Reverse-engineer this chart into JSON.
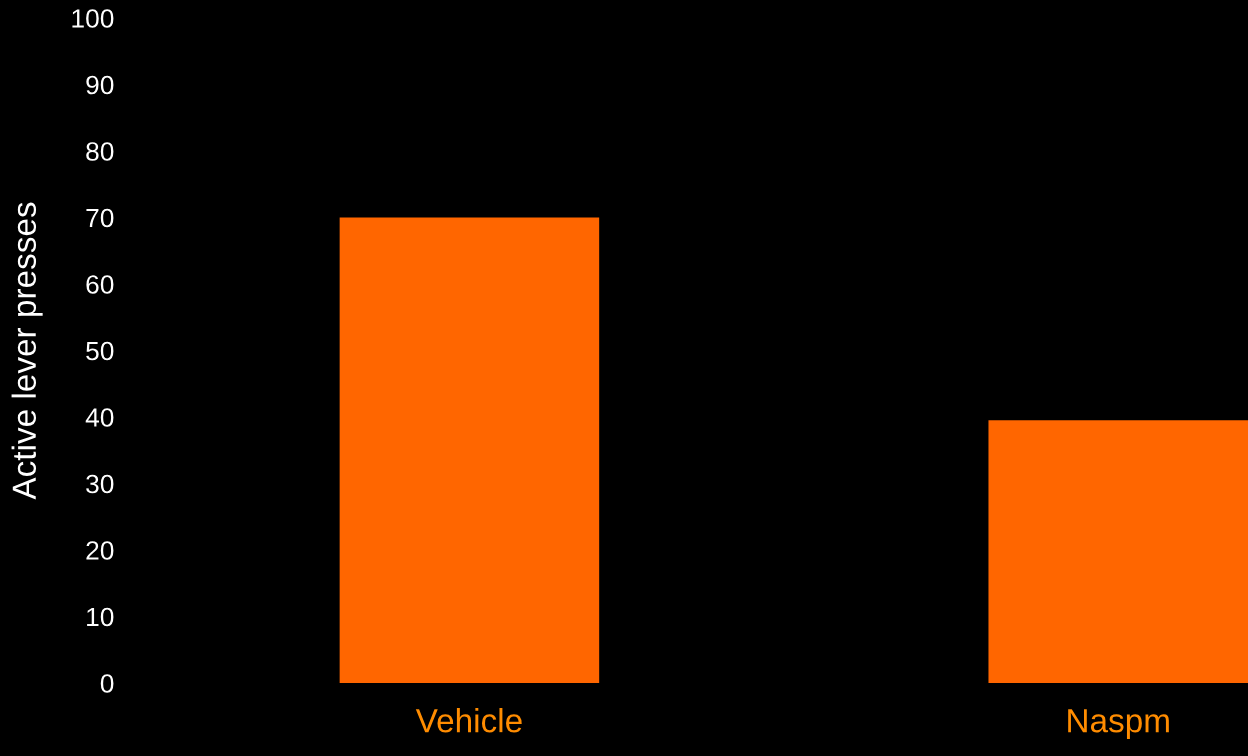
{
  "chart_data": {
    "type": "bar",
    "ylabel": "Active lever presses",
    "categories": [
      "Vehicle",
      "Naspm"
    ],
    "values": [
      70,
      39.5
    ],
    "color": "#ff6600",
    "ylim": [
      0,
      100
    ],
    "yticks": [
      0,
      10,
      20,
      30,
      40,
      50,
      60,
      70,
      80,
      90,
      100
    ],
    "grid": false
  }
}
